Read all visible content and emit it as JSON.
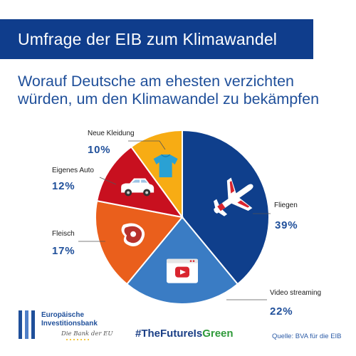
{
  "header": {
    "title": "Umfrage der EIB zum Klimawandel"
  },
  "chart_data": {
    "type": "pie",
    "title": "",
    "subtitle_lines": [
      "Worauf Deutsche am ehesten verzichten",
      "würden, um den Klimawandel zu bekämpfen"
    ],
    "start_angle_deg": 0,
    "direction": "clockwise",
    "slices": [
      {
        "label": "Fliegen",
        "value": 39,
        "value_label": "39%",
        "color": "#0f3f8c",
        "icon": "airplane-icon"
      },
      {
        "label": "Video streaming",
        "value": 22,
        "value_label": "22%",
        "color": "#3a7cc4",
        "icon": "video-play-icon"
      },
      {
        "label": "Fleisch",
        "value": 17,
        "value_label": "17%",
        "color": "#ea5f1c",
        "icon": "steak-icon"
      },
      {
        "label": "Eigenes Auto",
        "value": 12,
        "value_label": "12%",
        "color": "#c8101f",
        "icon": "car-icon"
      },
      {
        "label": "Neue Kleidung",
        "value": 10,
        "value_label": "10%",
        "color": "#f7ac14",
        "icon": "tshirt-icon"
      }
    ]
  },
  "footer": {
    "logo_line1": "Europäische",
    "logo_line2": "Investitionsbank",
    "logo_tagline": "Die Bank der EU",
    "hashtag_prefix": "#TheFutureIs",
    "hashtag_suffix": "Green",
    "source": "Quelle: BVA für die EIB"
  }
}
